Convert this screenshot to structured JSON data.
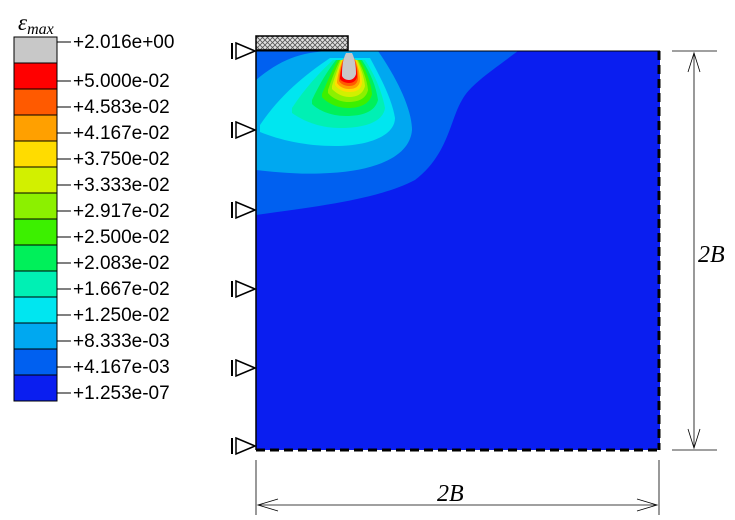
{
  "legend": {
    "title": "εmax",
    "title_symbol": "ε",
    "title_subscript": "max",
    "items": [
      {
        "label": "+2.016e+00",
        "color": "#c8c8c8"
      },
      {
        "label": "+5.000e-02",
        "color": "#ff0000"
      },
      {
        "label": "+4.583e-02",
        "color": "#ff5a00"
      },
      {
        "label": "+4.167e-02",
        "color": "#ffa000"
      },
      {
        "label": "+3.750e-02",
        "color": "#ffdc00"
      },
      {
        "label": "+3.333e-02",
        "color": "#d2f000"
      },
      {
        "label": "+2.917e-02",
        "color": "#8cf000"
      },
      {
        "label": "+2.500e-02",
        "color": "#3cf000"
      },
      {
        "label": "+2.083e-02",
        "color": "#00f05a"
      },
      {
        "label": "+1.667e-02",
        "color": "#00f0b4"
      },
      {
        "label": "+1.250e-02",
        "color": "#00e6f0"
      },
      {
        "label": "+8.333e-03",
        "color": "#00a8f0"
      },
      {
        "label": "+4.167e-03",
        "color": "#0060f0"
      },
      {
        "label": "+1.253e-07",
        "color": "#0a1ef0"
      }
    ]
  },
  "dimensions": {
    "width_label": "2B",
    "height_label": "2B"
  },
  "colors": {
    "domain_base": "#0a1ef0",
    "footing_fill": "#d8d8d8",
    "outline": "#000000"
  }
}
